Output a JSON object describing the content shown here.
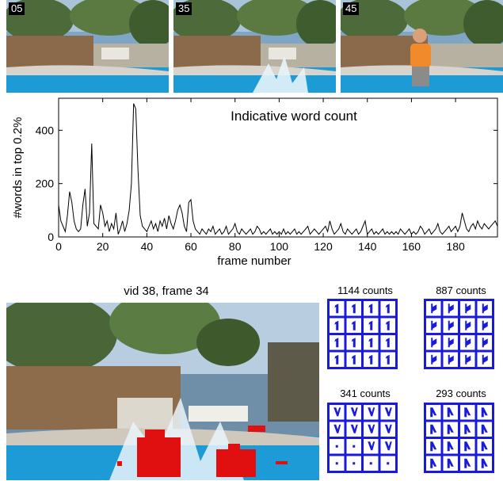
{
  "thumbnails": [
    {
      "label": "05",
      "scene": "pool-empty"
    },
    {
      "label": "35",
      "scene": "pool-splash"
    },
    {
      "label": "45",
      "scene": "pool-jumper"
    }
  ],
  "chart_data": {
    "type": "line",
    "title": "Indicative word count",
    "xlabel": "frame number",
    "ylabel": "#words in top 0.2%",
    "xlim": [
      0,
      199
    ],
    "ylim": [
      0,
      520
    ],
    "xticks": [
      0,
      20,
      40,
      60,
      80,
      100,
      120,
      140,
      160,
      180
    ],
    "yticks": [
      0,
      200,
      400
    ],
    "grid": false,
    "series": [
      {
        "color": "#000000",
        "values": [
          120,
          60,
          40,
          20,
          80,
          170,
          130,
          60,
          30,
          20,
          30,
          120,
          180,
          40,
          90,
          350,
          50,
          40,
          30,
          120,
          90,
          40,
          60,
          20,
          50,
          30,
          90,
          10,
          30,
          60,
          20,
          50,
          100,
          200,
          500,
          480,
          250,
          80,
          40,
          30,
          20,
          40,
          60,
          30,
          50,
          20,
          60,
          40,
          70,
          30,
          80,
          50,
          30,
          60,
          100,
          120,
          90,
          40,
          20,
          130,
          140,
          60,
          30,
          20,
          10,
          30,
          20,
          10,
          30,
          20,
          40,
          10,
          20,
          30,
          10,
          20,
          40,
          10,
          20,
          30,
          50,
          20,
          10,
          30,
          20,
          10,
          20,
          30,
          10,
          20,
          40,
          30,
          10,
          20,
          10,
          20,
          30,
          10,
          20,
          10,
          20,
          10,
          30,
          10,
          20,
          10,
          20,
          30,
          10,
          20,
          10,
          20,
          30,
          40,
          10,
          20,
          30,
          20,
          10,
          20,
          30,
          40,
          20,
          60,
          30,
          10,
          20,
          30,
          50,
          20,
          10,
          30,
          20,
          10,
          20,
          30,
          10,
          20,
          40,
          60,
          10,
          20,
          30,
          10,
          20,
          10,
          20,
          30,
          10,
          20,
          10,
          20,
          10,
          20,
          10,
          30,
          20,
          10,
          20,
          30,
          10,
          20,
          10,
          20,
          40,
          30,
          10,
          20,
          30,
          10,
          20,
          30,
          50,
          20,
          10,
          20,
          30,
          40,
          20,
          30,
          40,
          20,
          40,
          90,
          60,
          30,
          20,
          40,
          50,
          30,
          60,
          40,
          30,
          50,
          40,
          30,
          40,
          50,
          60,
          40
        ]
      }
    ]
  },
  "main_image": {
    "title": "vid 38, frame 34"
  },
  "grids": [
    {
      "label": "1144 counts",
      "glyph": "1"
    },
    {
      "label": "887 counts",
      "glyph": "flag"
    },
    {
      "label": "341 counts",
      "glyph": "mixed"
    },
    {
      "label": "293 counts",
      "glyph": "corner"
    }
  ],
  "colors": {
    "water": "#1c9bd6",
    "grid_blue": "#1a1adb",
    "highlight_red": "#e01010"
  }
}
